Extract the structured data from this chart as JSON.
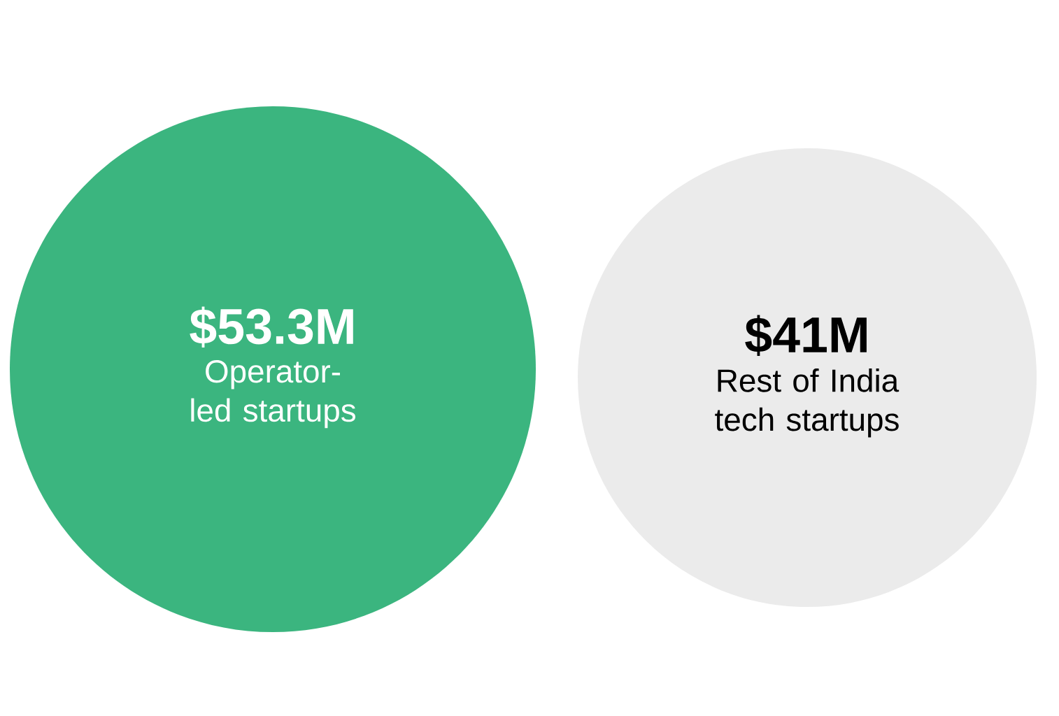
{
  "chart_data": {
    "type": "other",
    "categories": [
      "Operator-led startups",
      "Rest of India tech startups"
    ],
    "values": [
      53.3,
      41
    ],
    "value_labels": [
      "$53.3M",
      "$41M"
    ],
    "colors": [
      "#3bb57f",
      "#ebebeb"
    ]
  }
}
